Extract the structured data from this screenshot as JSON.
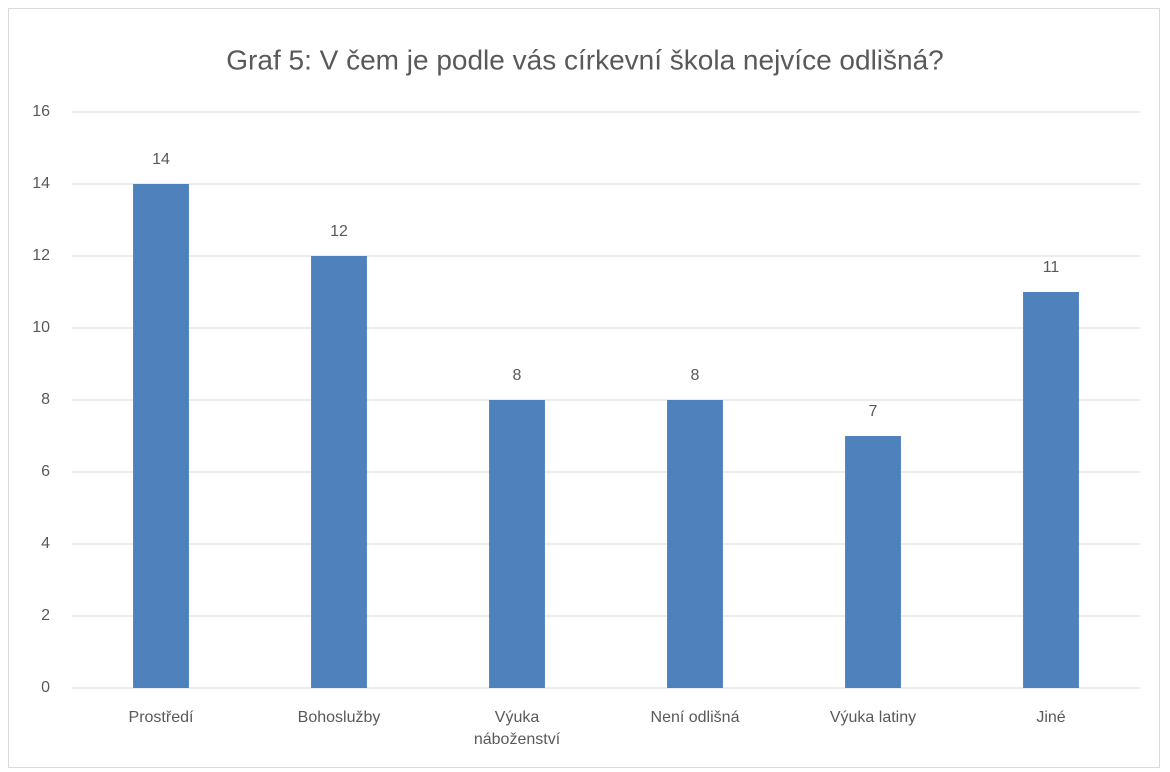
{
  "chart_data": {
    "type": "bar",
    "title": "Graf 5: V čem je podle vás církevní škola nejvíce odlišná?",
    "categories": [
      "Prostředí",
      "Bohoslužby",
      "Výuka náboženství",
      "Není odlišná",
      "Výuka latiny",
      "Jiné"
    ],
    "values": [
      14,
      12,
      8,
      8,
      7,
      11
    ],
    "color": "#4f81bd",
    "ylim": [
      0,
      16
    ],
    "yticks": [
      0,
      2,
      4,
      6,
      8,
      10,
      12,
      14,
      16
    ],
    "grid": true
  }
}
